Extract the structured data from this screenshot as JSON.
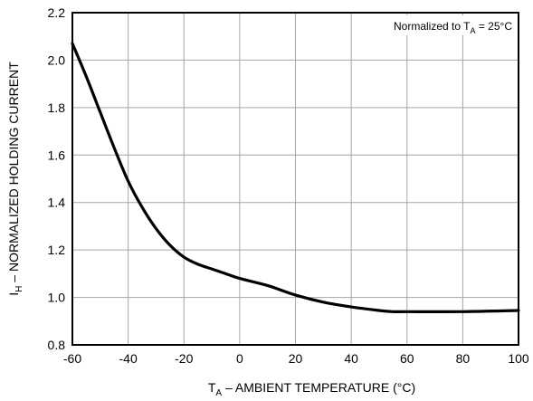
{
  "chart_data": {
    "type": "line",
    "title": "",
    "xlabel": "T_A – AMBIENT TEMPERATURE (°C)",
    "ylabel": "I_H – NORMALIZED HOLDING CURRENT",
    "xlabel_parts": {
      "main": "T",
      "sub": "A",
      "rest": " – AMBIENT TEMPERATURE (°C)"
    },
    "ylabel_parts": {
      "main": "I",
      "sub": "H",
      "rest": " – NORMALIZED HOLDING CURRENT"
    },
    "annotation": "Normalized to T_A = 25°C",
    "annotation_parts": {
      "pre": "Normalized to T",
      "sub": "A",
      "post": " = 25°C"
    },
    "xlim": [
      -60,
      100
    ],
    "ylim": [
      0.8,
      2.2
    ],
    "xticks": [
      -60,
      -40,
      -20,
      0,
      20,
      40,
      60,
      80,
      100
    ],
    "yticks": [
      0.8,
      1.0,
      1.2,
      1.4,
      1.6,
      1.8,
      2.0,
      2.2
    ],
    "xtick_labels": [
      "-60",
      "-40",
      "-20",
      "0",
      "20",
      "40",
      "60",
      "80",
      "100"
    ],
    "ytick_labels": [
      "0.8",
      "1.0",
      "1.2",
      "1.4",
      "1.6",
      "1.8",
      "2.0",
      "2.2"
    ],
    "grid": true,
    "series": [
      {
        "x": [
          -60,
          -55,
          -50,
          -45,
          -40,
          -35,
          -30,
          -25,
          -20,
          -15,
          -10,
          -5,
          0,
          10,
          20,
          30,
          40,
          50,
          55,
          60,
          80,
          100
        ],
        "y": [
          2.07,
          1.93,
          1.78,
          1.63,
          1.49,
          1.38,
          1.29,
          1.22,
          1.17,
          1.14,
          1.12,
          1.1,
          1.08,
          1.05,
          1.01,
          0.98,
          0.96,
          0.945,
          0.94,
          0.94,
          0.94,
          0.945
        ]
      }
    ]
  }
}
